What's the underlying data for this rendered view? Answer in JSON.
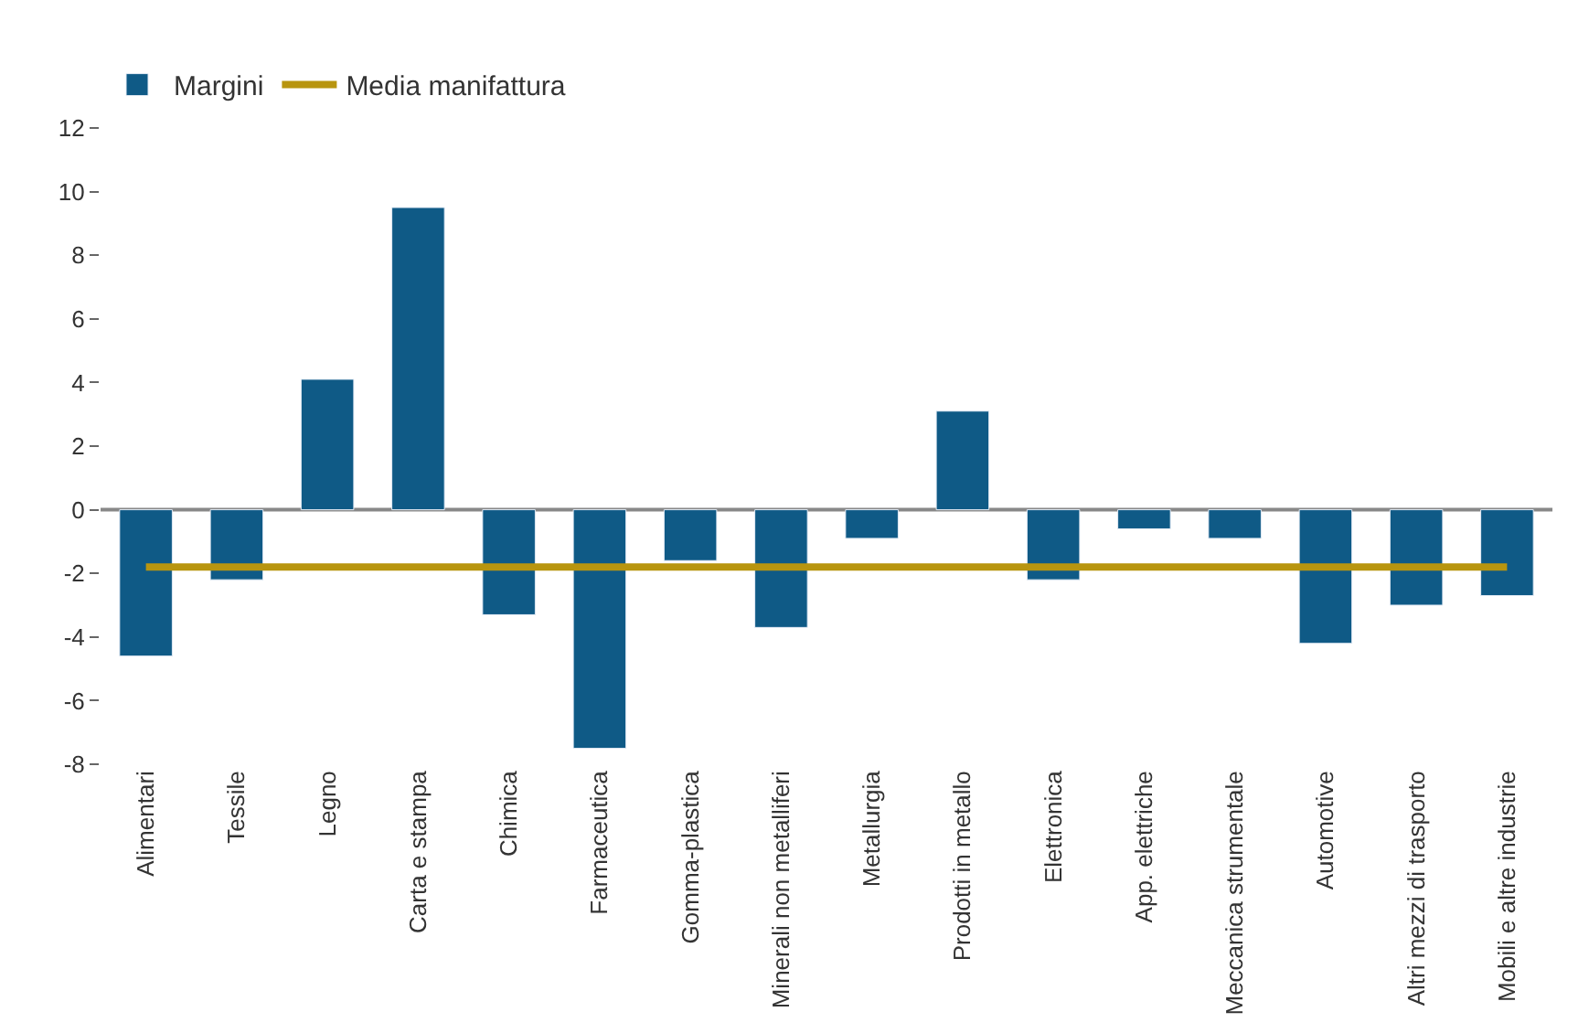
{
  "chart_data": {
    "type": "bar",
    "categories": [
      "Alimentari",
      "Tessile",
      "Legno",
      "Carta e stampa",
      "Chimica",
      "Farmaceutica",
      "Gomma-plastica",
      "Minerali non metalliferi",
      "Metallurgia",
      "Prodotti in metallo",
      "Elettronica",
      "App. elettriche",
      "Meccanica strumentale",
      "Automotive",
      "Altri mezzi di trasporto",
      "Mobili e altre industrie"
    ],
    "series": [
      {
        "name": "Margini",
        "color": "#0f5a86",
        "values": [
          -4.6,
          -2.2,
          4.1,
          9.5,
          -3.3,
          -7.5,
          -1.6,
          -3.7,
          -0.9,
          3.1,
          -2.2,
          -0.6,
          -0.9,
          -4.2,
          -3.0,
          -2.7
        ]
      },
      {
        "name": "Media manifattura",
        "type": "line",
        "color": "#b8950f",
        "values": [
          -1.8,
          -1.8,
          -1.8,
          -1.8,
          -1.8,
          -1.8,
          -1.8,
          -1.8,
          -1.8,
          -1.8,
          -1.8,
          -1.8,
          -1.8,
          -1.8,
          -1.8,
          -1.8
        ]
      }
    ],
    "ylim": [
      -8,
      12
    ],
    "yticks": [
      -8,
      -6,
      -4,
      -2,
      0,
      2,
      4,
      6,
      8,
      10,
      12
    ],
    "grid": false,
    "ref_lines": [
      {
        "axis": "y",
        "value": 0,
        "color": "#888888"
      }
    ],
    "legend": "top left",
    "marker": "none",
    "line_style": "solid"
  }
}
